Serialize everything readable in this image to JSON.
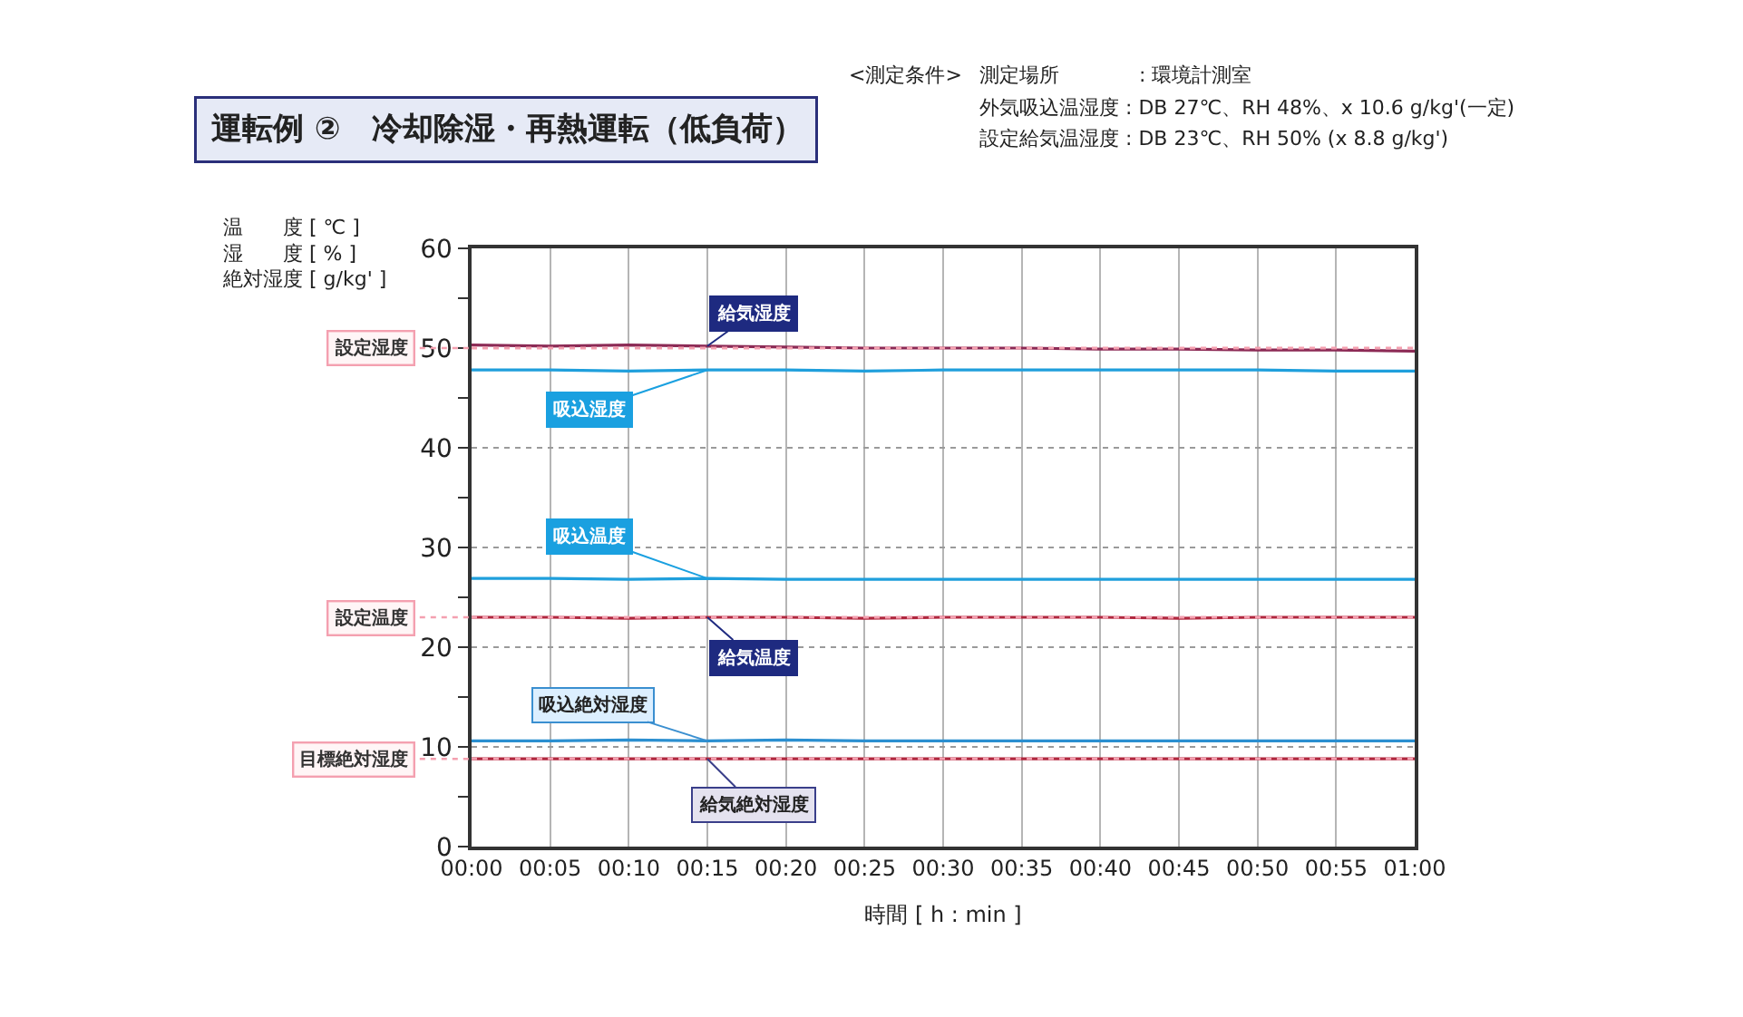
{
  "chart_data": {
    "type": "line",
    "title": "運転例 ②　冷却除湿・再熱運転（低負荷）",
    "annotations": [
      "<測定条件>",
      "測定場所　　　　: 環境計測室",
      "外気吸込温湿度 : DB 27℃、RH 48%、x 10.6 g/kg'(一定)",
      "設定給気温湿度 : DB 23℃、RH 50% (x 8.8 g/kg')"
    ],
    "xlabel": "時間 [ h : min ]",
    "ylabel": "温　　度 [ ℃ ]\n湿　　度 [ % ]\n絶対湿度 [ g/kg' ]",
    "x": [
      0,
      0.0833,
      0.1667,
      0.25,
      0.3333,
      0.4167,
      0.5,
      0.5833,
      0.6667,
      0.75,
      0.8333,
      0.9167,
      1
    ],
    "series": [
      {
        "name": "給気湿度",
        "color": "#8c2a55",
        "values": [
          50.3,
          50.2,
          50.3,
          50.2,
          50.1,
          50.0,
          50.0,
          50.0,
          49.9,
          49.9,
          49.8,
          49.8,
          49.7
        ]
      },
      {
        "name": "吸込湿度",
        "color": "#1f9fdc",
        "values": [
          47.8,
          47.8,
          47.7,
          47.8,
          47.8,
          47.7,
          47.8,
          47.8,
          47.8,
          47.8,
          47.8,
          47.7,
          47.7
        ]
      },
      {
        "name": "吸込温度",
        "color": "#1f9fdc",
        "values": [
          26.9,
          26.9,
          26.8,
          26.9,
          26.8,
          26.8,
          26.8,
          26.8,
          26.8,
          26.8,
          26.8,
          26.8,
          26.8
        ]
      },
      {
        "name": "給気温度",
        "color": "#b0283f",
        "values": [
          23.0,
          23.0,
          22.9,
          23.0,
          23.0,
          22.9,
          23.0,
          23.0,
          23.0,
          22.9,
          23.0,
          23.0,
          23.0
        ]
      },
      {
        "name": "吸込絶対湿度",
        "color": "#2b8fd0",
        "values": [
          10.6,
          10.6,
          10.7,
          10.6,
          10.7,
          10.6,
          10.6,
          10.6,
          10.6,
          10.6,
          10.6,
          10.6,
          10.6
        ]
      },
      {
        "name": "給気絶対湿度",
        "color": "#b0283f",
        "values": [
          8.8,
          8.8,
          8.8,
          8.8,
          8.8,
          8.8,
          8.8,
          8.8,
          8.8,
          8.8,
          8.8,
          8.8,
          8.8
        ]
      }
    ],
    "ref_lines": [
      {
        "axis": "y",
        "value": 50,
        "label": "設定湿度",
        "color": "#f4a0b0",
        "line_style": "dotted"
      },
      {
        "axis": "y",
        "value": 23,
        "label": "設定温度",
        "color": "#f4a0b0",
        "line_style": "dotted"
      },
      {
        "axis": "y",
        "value": 8.8,
        "label": "目標絶対湿度",
        "color": "#f4a0b0",
        "line_style": "dotted"
      }
    ],
    "xlim": [
      0,
      1
    ],
    "xticks": [
      {
        "value": 0,
        "label": "00:00"
      },
      {
        "value": 0.0833,
        "label": "00:05"
      },
      {
        "value": 0.1667,
        "label": "00:10"
      },
      {
        "value": 0.25,
        "label": "00:15"
      },
      {
        "value": 0.3333,
        "label": "00:20"
      },
      {
        "value": 0.4167,
        "label": "00:25"
      },
      {
        "value": 0.5,
        "label": "00:30"
      },
      {
        "value": 0.5833,
        "label": "00:35"
      },
      {
        "value": 0.6667,
        "label": "00:40"
      },
      {
        "value": 0.75,
        "label": "00:45"
      },
      {
        "value": 0.8333,
        "label": "00:50"
      },
      {
        "value": 0.9167,
        "label": "00:55"
      },
      {
        "value": 1,
        "label": "01:00"
      }
    ],
    "ylim": [
      0,
      60
    ],
    "yticks": [
      0,
      {
        "value": 5,
        "label": null
      },
      10,
      {
        "value": 15,
        "label": null
      },
      20,
      {
        "value": 25,
        "label": null
      },
      30,
      {
        "value": 35,
        "label": null
      },
      40,
      {
        "value": 45,
        "label": null
      },
      50,
      {
        "value": 55,
        "label": null
      },
      60
    ],
    "grid": true,
    "legend": false,
    "marker": "none",
    "line_style": "solid"
  }
}
